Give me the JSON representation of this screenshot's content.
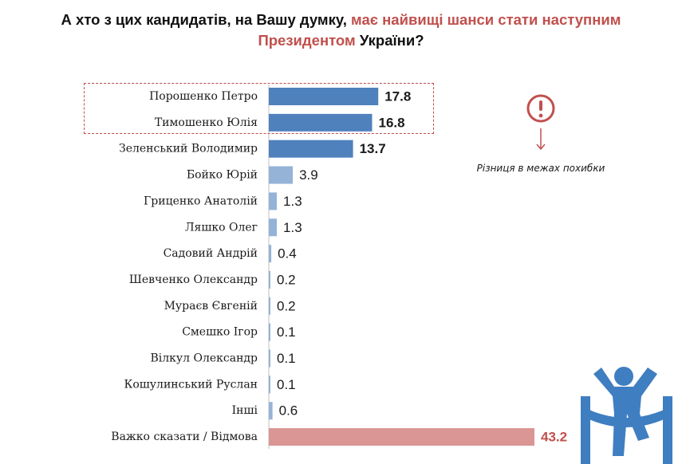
{
  "header": {
    "title_part1": "А хто з цих кандидатів, на Вашу думку,",
    "title_accent1": "має найвищі шанси стати наступним",
    "title_accent2": "Президентом",
    "title_part2": "України?"
  },
  "annotation": {
    "text": "Різниця в межах похибки",
    "icon": "exclamation-icon",
    "color": "#c0504d"
  },
  "colors": {
    "dark_blue": "#4f81bd",
    "light_blue": "#95b3d7",
    "hard_to_say": "#d99694",
    "accent": "#c0504d"
  },
  "chart_data": {
    "type": "bar",
    "orientation": "horizontal",
    "categories": [
      "Порошенко Петро",
      "Тимошенко Юлія",
      "Зеленський Володимир",
      "Бойко Юрій",
      "Гриценко Анатолій",
      "Ляшко Олег",
      "Садовий Андрій",
      "Шевченко Олександр",
      "Мураєв Євгеній",
      "Смешко Ігор",
      "Вілкул Олександр",
      "Кошулинський Руслан",
      "Інші",
      "Важко сказати / Відмова"
    ],
    "values": [
      17.8,
      16.8,
      13.7,
      3.9,
      1.3,
      1.3,
      0.4,
      0.2,
      0.2,
      0.1,
      0.1,
      0.1,
      0.6,
      43.2
    ],
    "labels": [
      "17.8",
      "16.8",
      "13.7",
      "3.9",
      "1.3",
      "1.3",
      "0.4",
      "0.2",
      "0.2",
      "0.1",
      "0.1",
      "0.1",
      "0.6",
      "43.2"
    ],
    "bar_color_groups": [
      "dark",
      "dark",
      "dark",
      "light",
      "light",
      "light",
      "light",
      "light",
      "light",
      "light",
      "light",
      "light",
      "light",
      "hard"
    ],
    "bold_labels": [
      true,
      true,
      true,
      false,
      false,
      false,
      false,
      false,
      false,
      false,
      false,
      false,
      false,
      true
    ],
    "xlim": [
      0,
      43.2
    ],
    "title": "",
    "xlabel": "",
    "ylabel": ""
  }
}
